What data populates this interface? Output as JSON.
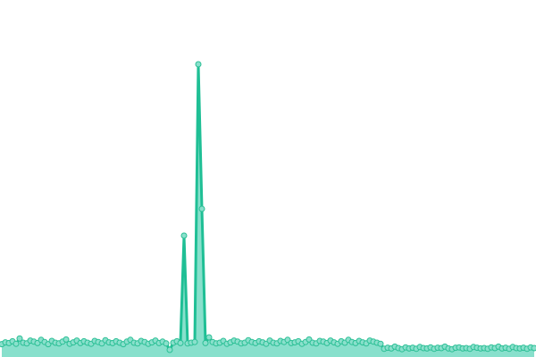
{
  "chart_data": {
    "type": "area",
    "title": "",
    "xlabel": "",
    "ylabel": "",
    "ylim": [
      0,
      100
    ],
    "grid": false,
    "legend": "none",
    "colors": {
      "line": "#1fbf95",
      "area": "#88e0cc",
      "point_fill": "#8ae0cc",
      "point_stroke": "#2bbf95"
    },
    "series": [
      {
        "values": [
          3.6,
          4.1,
          3.9,
          4.4,
          3.7,
          5.2,
          4.0,
          3.8,
          4.6,
          4.3,
          3.9,
          4.8,
          4.2,
          3.6,
          4.5,
          4.0,
          3.8,
          4.3,
          4.9,
          3.7,
          4.1,
          4.6,
          3.9,
          4.4,
          4.0,
          3.7,
          4.5,
          4.2,
          3.8,
          4.7,
          4.1,
          3.9,
          4.4,
          4.0,
          3.6,
          4.3,
          4.8,
          4.0,
          3.8,
          4.5,
          4.2,
          3.7,
          4.1,
          4.6,
          3.9,
          4.3,
          3.8,
          2.0,
          4.0,
          4.4,
          3.9,
          34,
          3.8,
          4.0,
          4.2,
          82,
          41.5,
          3.9,
          5.5,
          4.2,
          3.8,
          4.0,
          4.5,
          3.7,
          4.1,
          4.6,
          4.3,
          3.8,
          4.0,
          4.7,
          4.2,
          3.9,
          4.4,
          4.1,
          3.7,
          4.6,
          4.0,
          3.8,
          4.5,
          4.2,
          4.8,
          3.9,
          4.1,
          4.4,
          3.7,
          4.2,
          4.9,
          4.0,
          3.8,
          4.5,
          4.3,
          3.9,
          4.6,
          4.1,
          3.7,
          4.4,
          4.0,
          4.8,
          4.2,
          3.9,
          4.5,
          4.1,
          3.8,
          4.6,
          4.3,
          4.0,
          3.7,
          2.3,
          2.6,
          2.4,
          2.9,
          2.5,
          2.2,
          2.7,
          2.4,
          2.6,
          2.3,
          2.8,
          2.5,
          2.4,
          2.7,
          2.3,
          2.6,
          2.5,
          2.9,
          2.4,
          2.2,
          2.6,
          2.7,
          2.4,
          2.5,
          2.3,
          2.8,
          2.6,
          2.4,
          2.5,
          2.3,
          2.7,
          2.5,
          2.9,
          2.4,
          2.6,
          2.3,
          2.8,
          2.5,
          2.4,
          2.6,
          2.3,
          2.7,
          2.5
        ]
      }
    ]
  }
}
